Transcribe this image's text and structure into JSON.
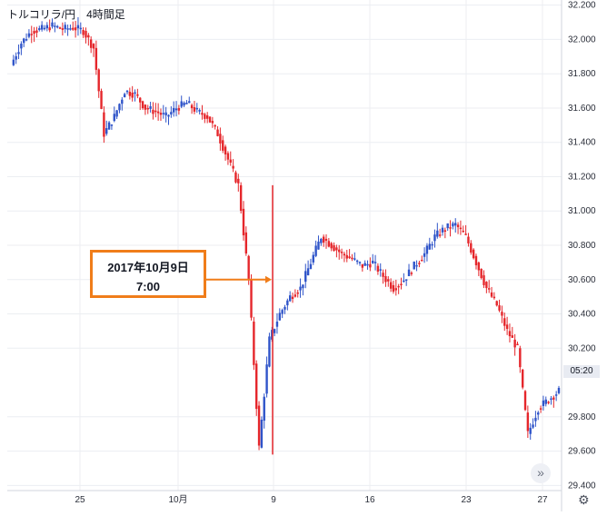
{
  "header": {
    "title": "トルコリラ/円　4時間足"
  },
  "callout": {
    "line1": "2017年10月9日",
    "line2": "7:00"
  },
  "price_badge": "05:20",
  "colors": {
    "up": "#2f54c9",
    "down": "#e5262b",
    "grid": "#eceef2",
    "axis": "#9598a1",
    "arrow": "#f07d1a"
  },
  "icons": {
    "scroll": "double-chevron-right-icon",
    "settings": "gear-icon"
  },
  "chart_data": {
    "type": "candlestick",
    "title": "トルコリラ/円　4時間足",
    "y_axis": {
      "ticks": [
        "32.200",
        "32.000",
        "31.800",
        "31.600",
        "31.400",
        "31.200",
        "31.000",
        "30.800",
        "30.600",
        "30.400",
        "30.200",
        "29.800",
        "29.600",
        "29.400"
      ],
      "range": [
        29.37,
        32.23
      ],
      "position": "right"
    },
    "x_axis": {
      "ticks": [
        "25",
        "10月",
        "9",
        "16",
        "23",
        "27"
      ]
    },
    "series": [
      {
        "key": "25",
        "close_points": [
          31.85,
          31.98,
          32.05,
          32.06,
          32.08,
          32.06,
          32.07,
          32.05,
          31.95
        ]
      },
      {
        "key": "10月",
        "close_points": [
          31.45,
          31.55,
          31.7,
          31.68,
          31.6,
          31.58,
          31.55,
          31.6,
          31.63,
          31.58,
          31.55
        ]
      },
      {
        "key": "9",
        "close_points": [
          31.45,
          31.3,
          31.15,
          30.6,
          29.62,
          30.25,
          30.4,
          30.5,
          30.55,
          30.7,
          30.85,
          30.8
        ]
      },
      {
        "key": "16",
        "close_points": [
          30.75,
          30.72,
          30.68,
          30.7,
          30.62,
          30.55,
          30.6,
          30.68,
          30.75,
          30.85,
          30.9,
          30.92
        ]
      },
      {
        "key": "23",
        "close_points": [
          30.85,
          30.7,
          30.55,
          30.45,
          30.3,
          30.2,
          29.7,
          29.85,
          29.9,
          29.95
        ]
      }
    ],
    "annotation": {
      "text": "2017年10月9日 7:00",
      "target_price": 30.6
    }
  }
}
